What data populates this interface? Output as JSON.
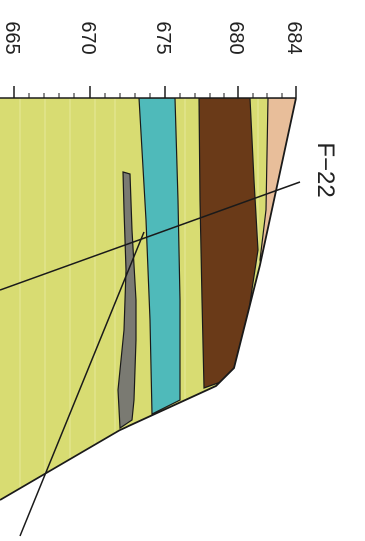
{
  "axis": {
    "ticks": [
      "665",
      "670",
      "675",
      "680",
      "684"
    ]
  },
  "section": {
    "label": "F−22"
  },
  "colors": {
    "background": "#ffffff",
    "yellow_layer": "#D8DC72",
    "teal_layer": "#4FBABA",
    "brown_layer": "#6A3A18",
    "peach_layer": "#E8BE9A",
    "gray_lens": "#7A7A72",
    "line": "#1a1a1a"
  }
}
